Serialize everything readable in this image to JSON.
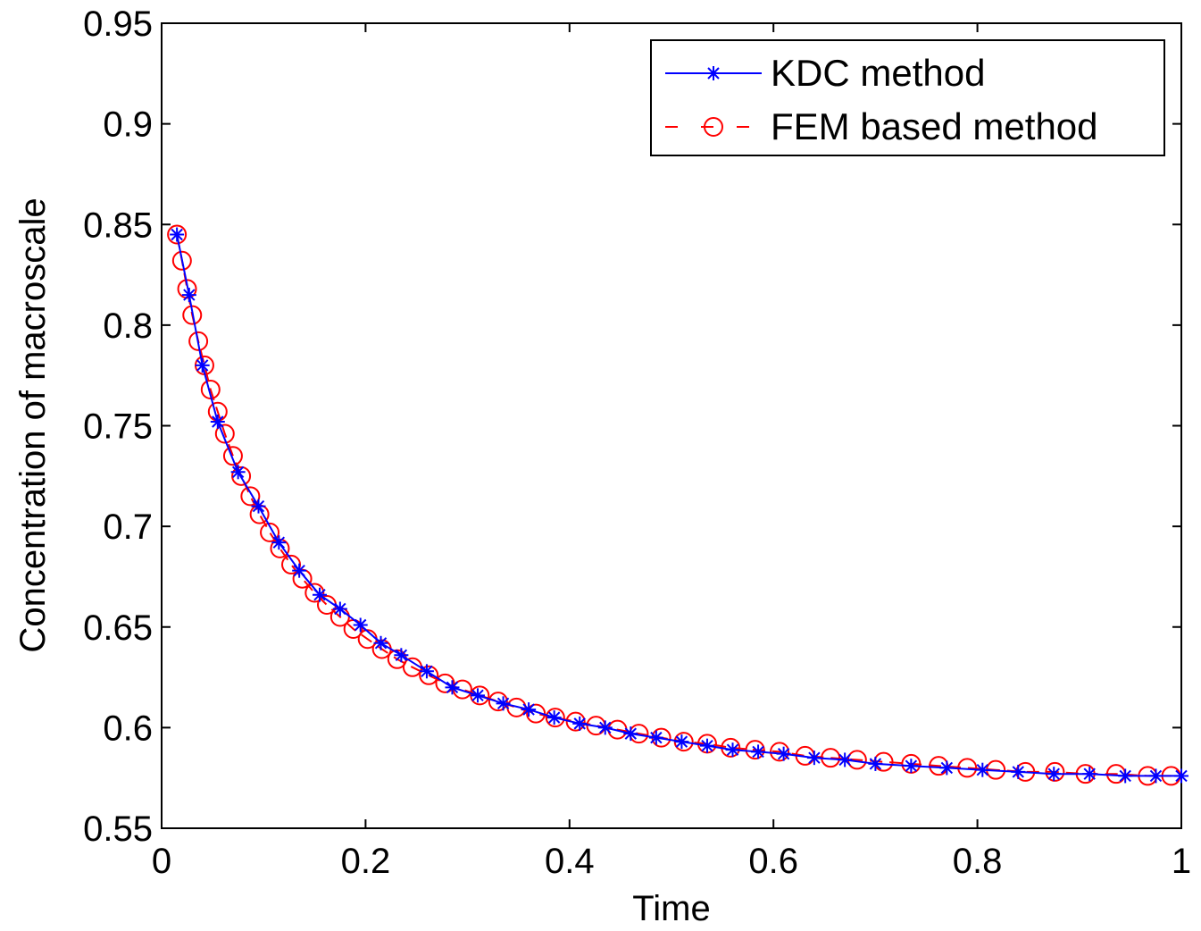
{
  "chart_data": {
    "type": "line",
    "xlabel": "Time",
    "ylabel": "Concentration of macroscale",
    "xlim": [
      0,
      1
    ],
    "ylim": [
      0.55,
      0.95
    ],
    "xticks": [
      0,
      0.2,
      0.4,
      0.6,
      0.8,
      1
    ],
    "xtick_labels": [
      "0",
      "0.2",
      "0.4",
      "0.6",
      "0.8",
      "1"
    ],
    "yticks": [
      0.55,
      0.6,
      0.65,
      0.7,
      0.75,
      0.8,
      0.85,
      0.9,
      0.95
    ],
    "ytick_labels": [
      "0.55",
      "0.6",
      "0.65",
      "0.7",
      "0.75",
      "0.8",
      "0.85",
      "0.9",
      "0.95"
    ],
    "grid": false,
    "legend_position": "top-right",
    "series": [
      {
        "name": "KDC method",
        "color": "#0000ff",
        "line_style": "solid",
        "marker": "asterisk",
        "x": [
          0.015,
          0.027,
          0.04,
          0.055,
          0.075,
          0.095,
          0.115,
          0.135,
          0.155,
          0.175,
          0.195,
          0.215,
          0.235,
          0.26,
          0.285,
          0.31,
          0.335,
          0.36,
          0.385,
          0.41,
          0.435,
          0.46,
          0.485,
          0.51,
          0.535,
          0.56,
          0.585,
          0.61,
          0.64,
          0.67,
          0.7,
          0.735,
          0.77,
          0.805,
          0.84,
          0.875,
          0.91,
          0.945,
          0.975,
          1.0
        ],
        "y": [
          0.845,
          0.815,
          0.78,
          0.752,
          0.727,
          0.71,
          0.692,
          0.678,
          0.666,
          0.659,
          0.651,
          0.642,
          0.636,
          0.628,
          0.62,
          0.616,
          0.612,
          0.609,
          0.605,
          0.602,
          0.6,
          0.597,
          0.595,
          0.593,
          0.591,
          0.589,
          0.588,
          0.587,
          0.585,
          0.584,
          0.582,
          0.581,
          0.58,
          0.579,
          0.578,
          0.577,
          0.577,
          0.576,
          0.576,
          0.576
        ]
      },
      {
        "name": "FEM based method",
        "color": "#ff0000",
        "line_style": "dashed",
        "marker": "circle",
        "x": [
          0.015,
          0.02,
          0.025,
          0.03,
          0.036,
          0.042,
          0.048,
          0.055,
          0.062,
          0.07,
          0.078,
          0.087,
          0.096,
          0.106,
          0.116,
          0.127,
          0.138,
          0.15,
          0.162,
          0.175,
          0.188,
          0.202,
          0.216,
          0.231,
          0.246,
          0.262,
          0.278,
          0.295,
          0.312,
          0.33,
          0.348,
          0.367,
          0.386,
          0.406,
          0.426,
          0.447,
          0.468,
          0.49,
          0.512,
          0.535,
          0.558,
          0.582,
          0.606,
          0.631,
          0.656,
          0.682,
          0.708,
          0.735,
          0.762,
          0.79,
          0.818,
          0.847,
          0.876,
          0.906,
          0.936,
          0.967,
          0.99
        ],
        "y": [
          0.845,
          0.832,
          0.818,
          0.805,
          0.792,
          0.78,
          0.768,
          0.757,
          0.746,
          0.735,
          0.725,
          0.715,
          0.706,
          0.697,
          0.689,
          0.681,
          0.674,
          0.667,
          0.661,
          0.655,
          0.649,
          0.644,
          0.639,
          0.634,
          0.63,
          0.626,
          0.622,
          0.619,
          0.616,
          0.613,
          0.61,
          0.607,
          0.605,
          0.603,
          0.601,
          0.599,
          0.597,
          0.595,
          0.593,
          0.592,
          0.59,
          0.589,
          0.588,
          0.586,
          0.585,
          0.584,
          0.583,
          0.582,
          0.581,
          0.58,
          0.579,
          0.578,
          0.578,
          0.577,
          0.577,
          0.576,
          0.576
        ]
      }
    ]
  }
}
